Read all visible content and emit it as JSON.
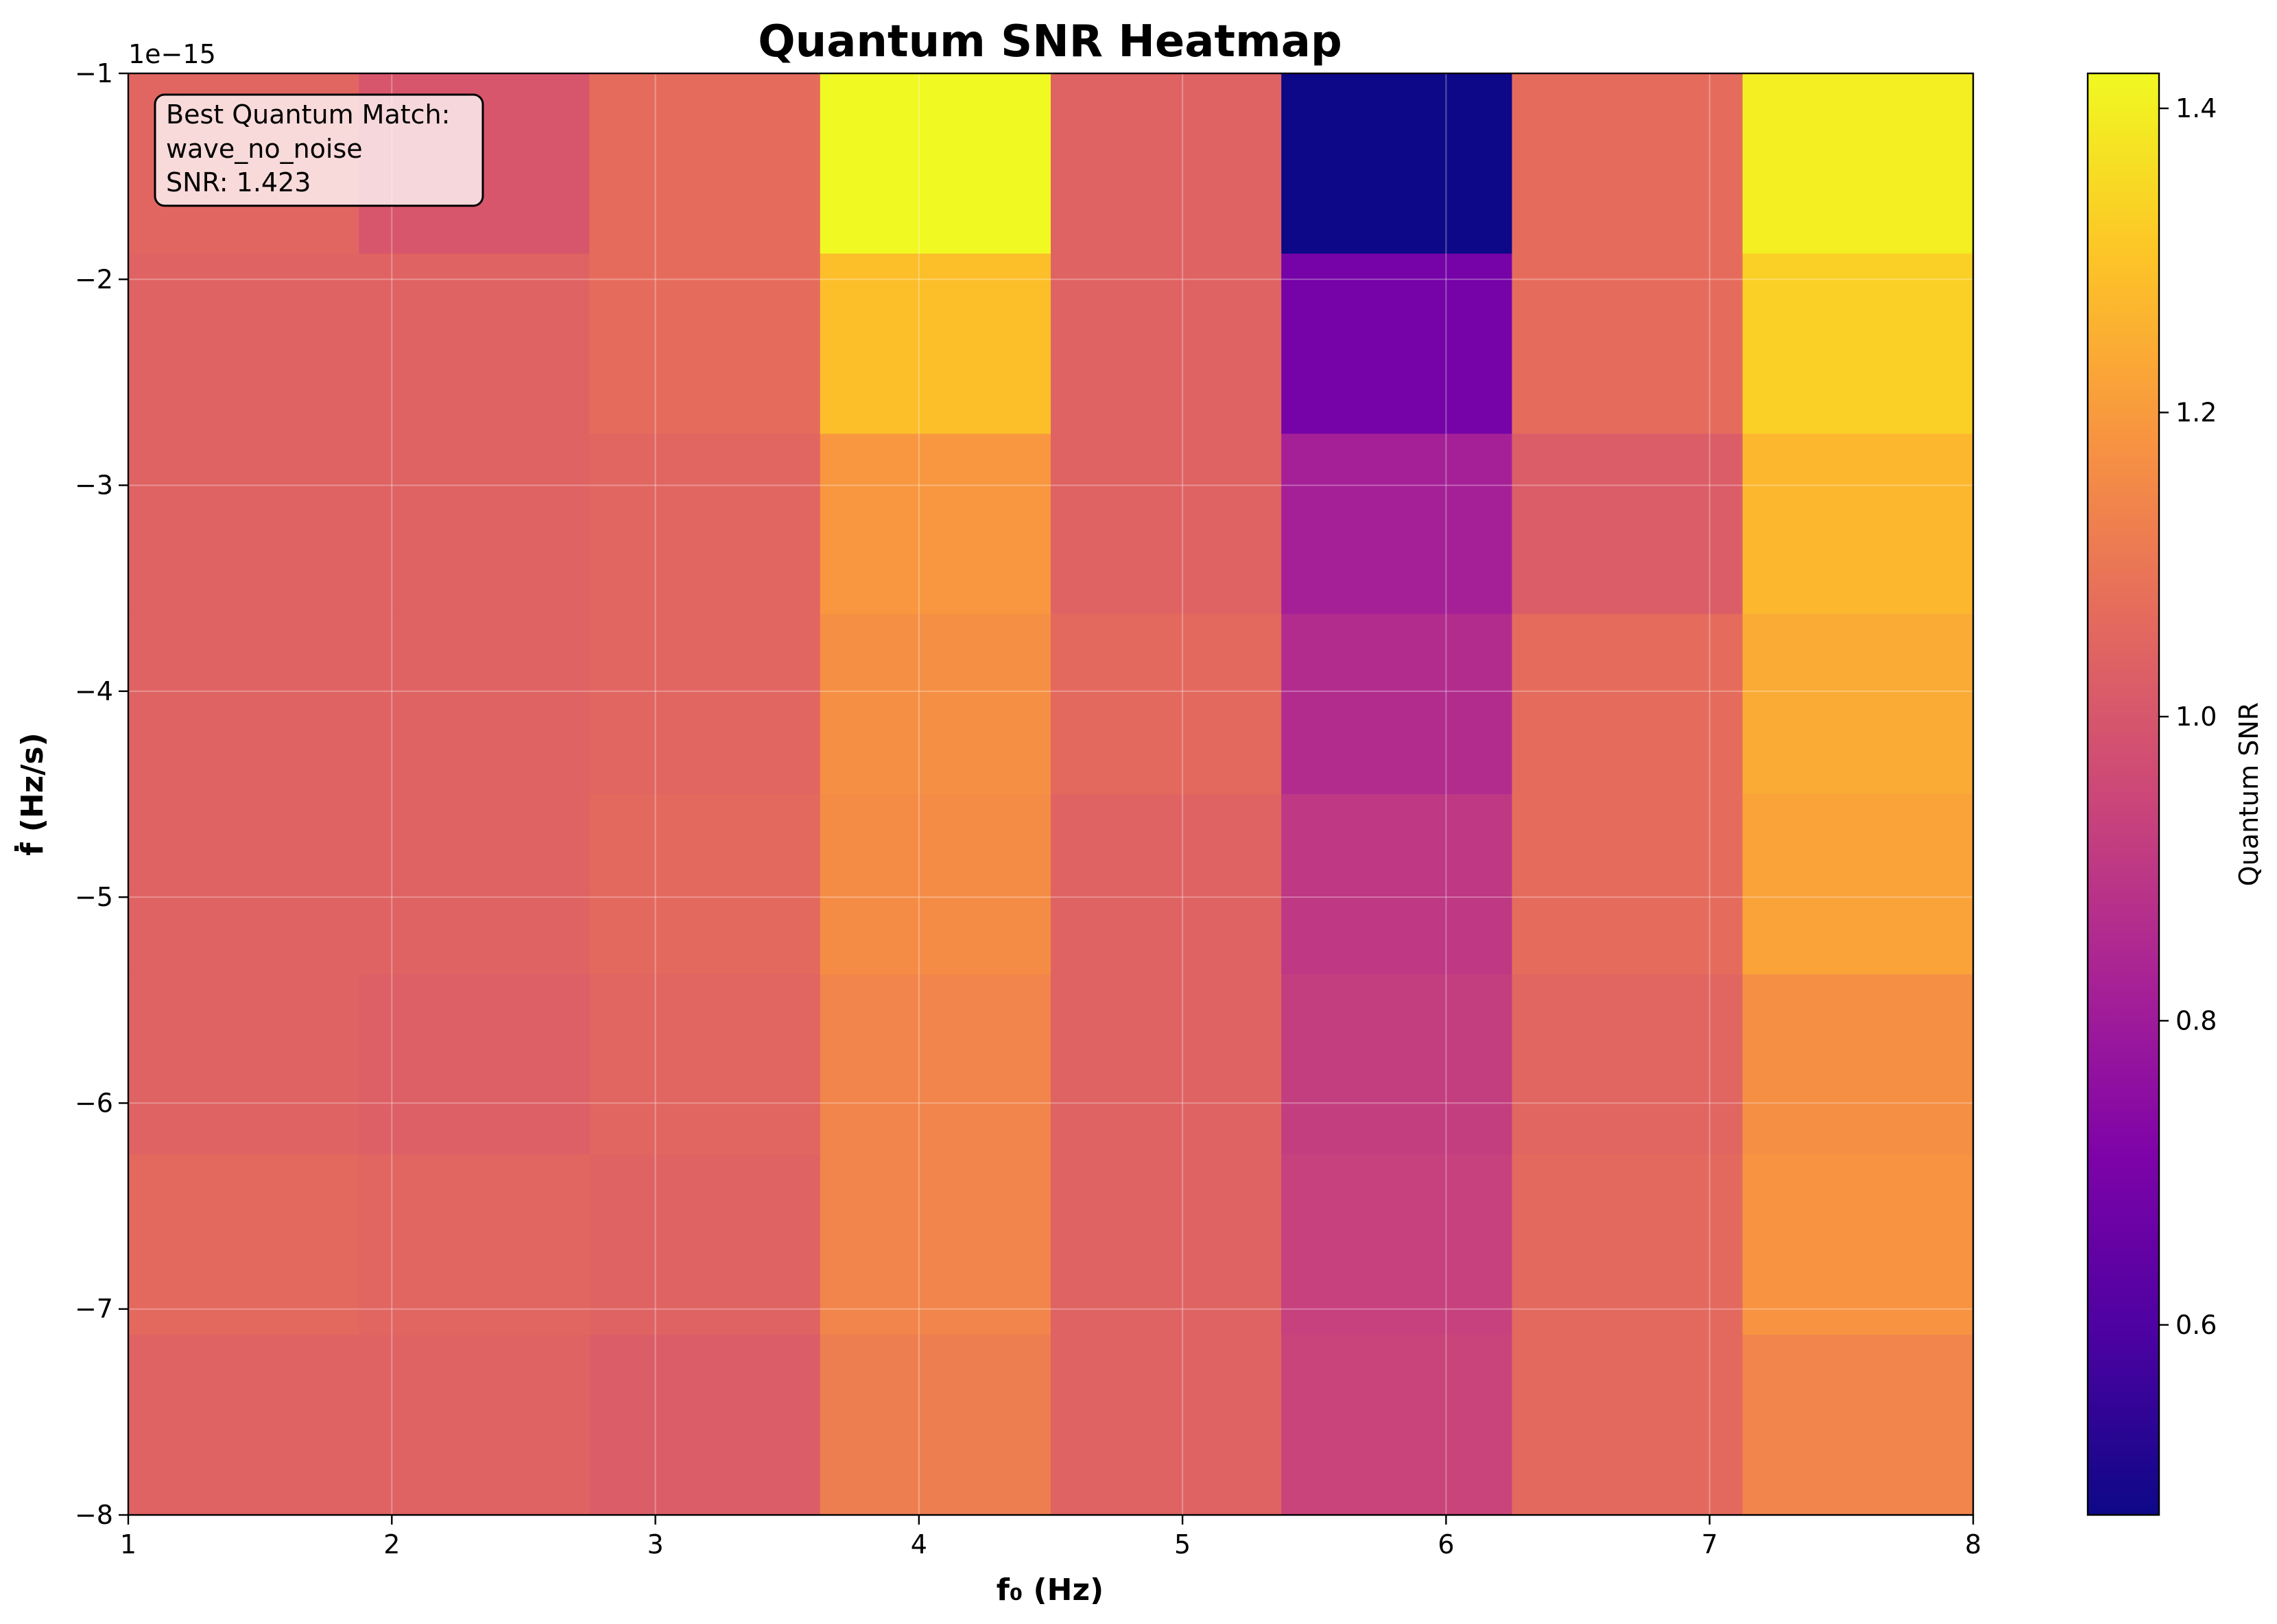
{
  "chart_data": {
    "type": "heatmap",
    "title": "Quantum SNR Heatmap",
    "xlabel": "f₀ (Hz)",
    "ylabel": "ḟ (Hz/s)",
    "xlim": [
      1,
      8
    ],
    "ylim": [
      -8,
      -1
    ],
    "x_ticks": [
      "1",
      "2",
      "3",
      "4",
      "5",
      "6",
      "7",
      "8"
    ],
    "y_ticks": [
      "−1",
      "−2",
      "−3",
      "−4",
      "−5",
      "−6",
      "−7",
      "−8"
    ],
    "y_offset_label": "1e−15",
    "colormap": "plasma",
    "colorbar": {
      "label": "Quantum SNR",
      "vmin": 0.475,
      "vmax": 1.423,
      "ticks": [
        0.6,
        0.8,
        1.0,
        1.2,
        1.4
      ],
      "tick_labels": [
        "0.6",
        "0.8",
        "1.0",
        "1.2",
        "1.4"
      ]
    },
    "grid": true,
    "x_centers": [
      1.4375,
      2.3125,
      3.1875,
      4.0625,
      4.9375,
      5.8125,
      6.6875,
      7.5625
    ],
    "y_centers": [
      -1.4375,
      -2.3125,
      -3.1875,
      -4.0625,
      -4.9375,
      -5.8125,
      -6.6875,
      -7.5625
    ],
    "values": [
      [
        1.05,
        1.0,
        1.07,
        1.423,
        1.04,
        0.475,
        1.07,
        1.4
      ],
      [
        1.04,
        1.04,
        1.07,
        1.29,
        1.04,
        0.69,
        1.07,
        1.33
      ],
      [
        1.04,
        1.04,
        1.05,
        1.19,
        1.04,
        0.82,
        1.02,
        1.27
      ],
      [
        1.04,
        1.04,
        1.05,
        1.17,
        1.06,
        0.86,
        1.07,
        1.24
      ],
      [
        1.04,
        1.04,
        1.06,
        1.16,
        1.04,
        0.9,
        1.07,
        1.22
      ],
      [
        1.04,
        1.03,
        1.05,
        1.14,
        1.04,
        0.92,
        1.05,
        1.17
      ],
      [
        1.06,
        1.05,
        1.04,
        1.14,
        1.04,
        0.93,
        1.06,
        1.18
      ],
      [
        1.04,
        1.04,
        1.02,
        1.12,
        1.04,
        0.94,
        1.06,
        1.14
      ]
    ],
    "annotation": {
      "lines": [
        "Best Quantum Match:",
        "wave_no_noise",
        "SNR: 1.423"
      ]
    }
  }
}
